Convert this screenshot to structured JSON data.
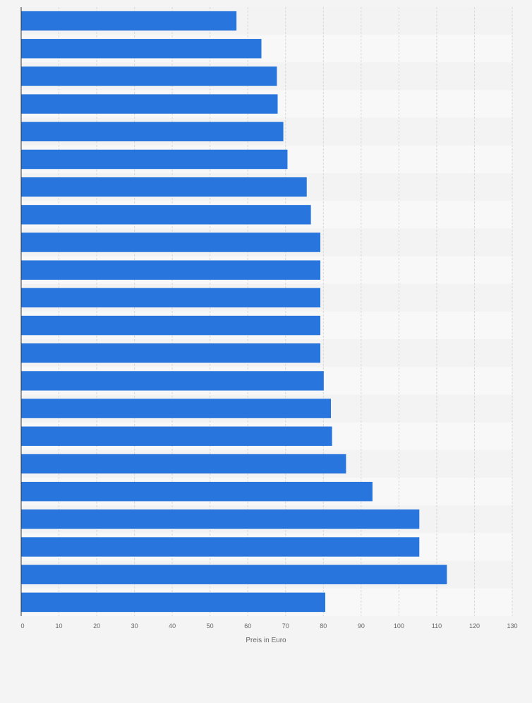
{
  "chart_data": {
    "type": "bar",
    "orientation": "horizontal",
    "xlabel": "Preis in Euro",
    "xlim": [
      0,
      130
    ],
    "xticks": [
      0,
      10,
      20,
      30,
      40,
      50,
      60,
      70,
      80,
      90,
      100,
      110,
      120,
      130
    ],
    "grid": true,
    "legend": "none",
    "bar_color": "#2876dd",
    "values": [
      57,
      63.6,
      67.7,
      67.9,
      69.4,
      70.5,
      75.6,
      76.7,
      79.2,
      79.2,
      79.2,
      79.2,
      79.2,
      80.1,
      82,
      82.3,
      86,
      93,
      105.4,
      105.4,
      112.7,
      80.5
    ]
  }
}
